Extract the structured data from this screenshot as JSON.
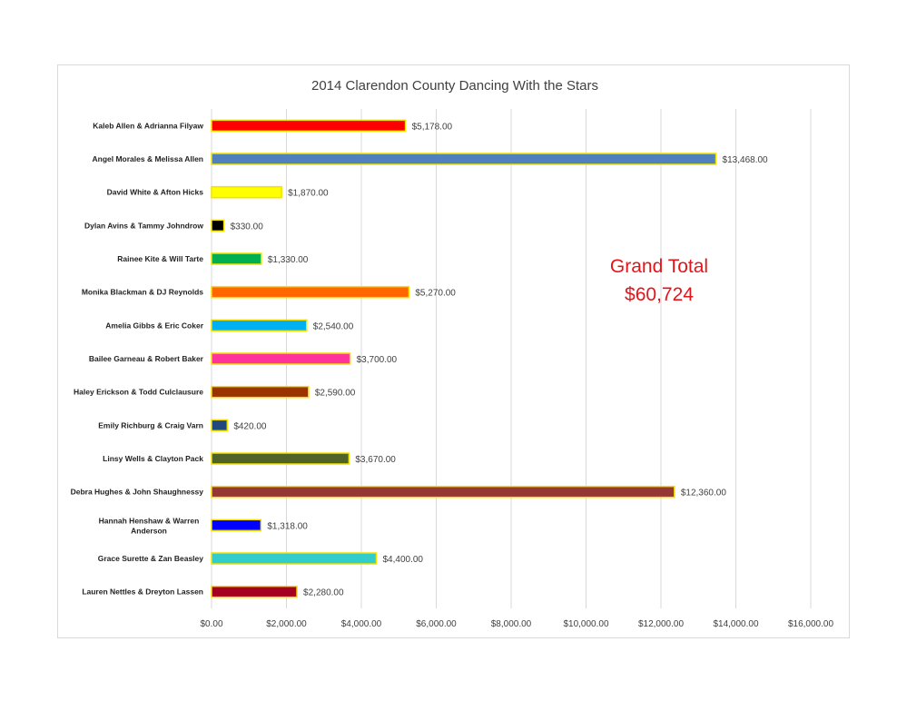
{
  "chart_data": {
    "type": "bar",
    "orientation": "horizontal",
    "title": "2014 Clarendon County Dancing With the Stars",
    "xlim": [
      0,
      16000
    ],
    "x_ticks": [
      0,
      2000,
      4000,
      6000,
      8000,
      10000,
      12000,
      14000,
      16000
    ],
    "x_tick_labels": [
      "$0.00",
      "$2,000.00",
      "$4,000.00",
      "$6,000.00",
      "$8,000.00",
      "$10,000.00",
      "$12,000.00",
      "$14,000.00",
      "$16,000.00"
    ],
    "grid": true,
    "legend": "none",
    "bar_border_color": "#f2e000",
    "categories": [
      [
        "Kaleb Allen & Adrianna Filyaw"
      ],
      [
        "Angel Morales & Melissa Allen"
      ],
      [
        "David White & Afton Hicks"
      ],
      [
        "Dylan Avins & Tammy Johndrow"
      ],
      [
        "Rainee Kite & Will Tarte"
      ],
      [
        "Monika Blackman & DJ Reynolds"
      ],
      [
        "Amelia Gibbs & Eric Coker"
      ],
      [
        "Bailee Garneau & Robert Baker"
      ],
      [
        "Haley Erickson & Todd Culclausure"
      ],
      [
        "Emily Richburg & Craig Varn"
      ],
      [
        "Linsy Wells & Clayton Pack"
      ],
      [
        "Debra Hughes & John Shaughnessy"
      ],
      [
        "Hannah Henshaw & Warren",
        "Anderson"
      ],
      [
        "Grace Surette & Zan Beasley"
      ],
      [
        "Lauren Nettles & Dreyton Lassen"
      ]
    ],
    "values": [
      5178,
      13468,
      1870,
      330,
      1330,
      5270,
      2540,
      3700,
      2590,
      420,
      3670,
      12360,
      1318,
      4400,
      2280
    ],
    "data_labels": [
      "$5,178.00",
      "$13,468.00",
      "$1,870.00",
      "$330.00",
      "$1,330.00",
      "$5,270.00",
      "$2,540.00",
      "$3,700.00",
      "$2,590.00",
      "$420.00",
      "$3,670.00",
      "$12,360.00",
      "$1,318.00",
      "$4,400.00",
      "$2,280.00"
    ],
    "colors": [
      "#ff0000",
      "#4f81bd",
      "#ffff00",
      "#000000",
      "#00b050",
      "#ff6600",
      "#00b0f0",
      "#ff3399",
      "#993300",
      "#1f497d",
      "#4f6228",
      "#953735",
      "#0000ff",
      "#33cccc",
      "#a50021"
    ],
    "annotation": {
      "line1": "Grand Total",
      "line2": "$60,724",
      "color": "#e3151a"
    }
  }
}
